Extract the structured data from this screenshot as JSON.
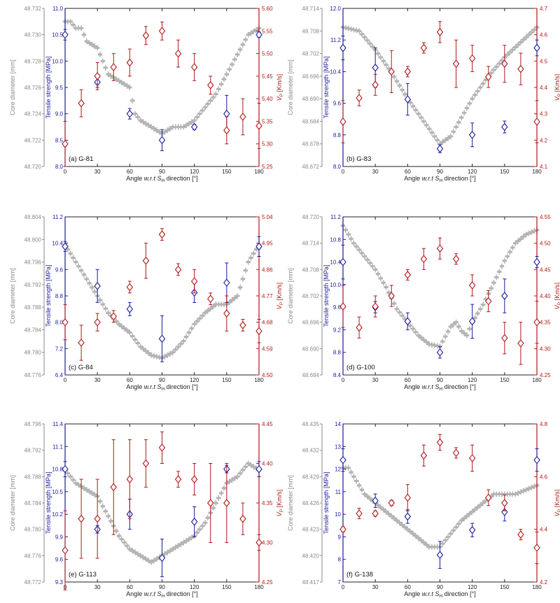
{
  "colors": {
    "core": "#b4b4b4",
    "core_axis": "#8a8a8a",
    "tensile": "#1a1a9a",
    "vp": "#b01818",
    "frame": "#222222"
  },
  "axis_titles": {
    "x_prefix": "Angle ",
    "x_italic": "w.r.t S",
    "x_sub": "H",
    "x_suffix": " direction [°]",
    "core": "Core diameter [mm]",
    "tensile": "Tensile strength [MPa]",
    "vp_main": "V",
    "vp_sub": "P",
    "vp_suffix": " [Km/s]"
  },
  "x_ticks": [
    0,
    30,
    60,
    90,
    120,
    150,
    180
  ],
  "chart_data": [
    {
      "type": "scatter",
      "label": "(a) G-81",
      "core_ticks": [
        "48.720",
        "48.722",
        "48.724",
        "48.726",
        "48.728",
        "48.730",
        "48.732"
      ],
      "core_ylim": [
        48.72,
        48.732
      ],
      "tensile_ticks": [
        "8.0",
        "8.5",
        "9.0",
        "9.5",
        "10.0",
        "10.5",
        "11.0"
      ],
      "tensile_ylim": [
        8.0,
        11.0
      ],
      "vp_ticks": [
        "5.25",
        "5.30",
        "5.35",
        "5.40",
        "5.45",
        "5.50",
        "5.55",
        "5.60"
      ],
      "vp_ylim": [
        5.25,
        5.6
      ],
      "core_profile": [
        [
          0,
          48.731
        ],
        [
          5,
          48.731
        ],
        [
          10,
          48.7305
        ],
        [
          15,
          48.7305
        ],
        [
          20,
          48.7295
        ],
        [
          30,
          48.729
        ],
        [
          40,
          48.727
        ],
        [
          50,
          48.7265
        ],
        [
          60,
          48.726
        ],
        [
          65,
          48.724
        ],
        [
          70,
          48.7235
        ],
        [
          80,
          48.723
        ],
        [
          90,
          48.7225
        ],
        [
          100,
          48.723
        ],
        [
          110,
          48.723
        ],
        [
          120,
          48.7235
        ],
        [
          130,
          48.7245
        ],
        [
          140,
          48.7255
        ],
        [
          150,
          48.727
        ],
        [
          160,
          48.7285
        ],
        [
          170,
          48.73
        ],
        [
          180,
          48.7305
        ]
      ],
      "tensile": [
        [
          0,
          10.5,
          0.1
        ],
        [
          30,
          9.6,
          0.1
        ],
        [
          60,
          9.0,
          0.1
        ],
        [
          90,
          8.5,
          0.2
        ],
        [
          120,
          8.75,
          0.05
        ],
        [
          150,
          9.0,
          0.35
        ],
        [
          180,
          10.5,
          0.05
        ]
      ],
      "vp": [
        [
          0,
          5.3,
          0.05
        ],
        [
          15,
          5.39,
          0.03
        ],
        [
          30,
          5.45,
          0.03
        ],
        [
          45,
          5.47,
          0.03
        ],
        [
          60,
          5.48,
          0.03
        ],
        [
          75,
          5.54,
          0.02
        ],
        [
          90,
          5.55,
          0.02
        ],
        [
          105,
          5.5,
          0.03
        ],
        [
          120,
          5.47,
          0.03
        ],
        [
          135,
          5.43,
          0.02
        ],
        [
          150,
          5.33,
          0.03
        ],
        [
          165,
          5.36,
          0.04
        ],
        [
          180,
          5.34,
          0.05
        ]
      ]
    },
    {
      "type": "scatter",
      "label": "(b) G-83",
      "core_ticks": [
        "48.672",
        "48.678",
        "48.684",
        "48.690",
        "48.696",
        "48.702",
        "48.708",
        "48.714"
      ],
      "core_ylim": [
        48.672,
        48.714
      ],
      "tensile_ticks": [
        "8.0",
        "8.8",
        "9.6",
        "10.4",
        "11.2",
        "12.0"
      ],
      "tensile_ylim": [
        8.0,
        12.0
      ],
      "vp_ticks": [
        "4.1",
        "4.2",
        "4.3",
        "4.4",
        "4.5",
        "4.6",
        "4.7"
      ],
      "vp_ylim": [
        4.1,
        4.7
      ],
      "core_profile": [
        [
          0,
          48.709
        ],
        [
          15,
          48.708
        ],
        [
          30,
          48.703
        ],
        [
          45,
          48.697
        ],
        [
          60,
          48.69
        ],
        [
          75,
          48.684
        ],
        [
          90,
          48.678
        ],
        [
          100,
          48.68
        ],
        [
          110,
          48.685
        ],
        [
          120,
          48.69
        ],
        [
          135,
          48.696
        ],
        [
          150,
          48.701
        ],
        [
          165,
          48.705
        ],
        [
          180,
          48.709
        ]
      ],
      "tensile": [
        [
          0,
          11.0,
          0.3
        ],
        [
          30,
          10.5,
          0.5
        ],
        [
          60,
          9.7,
          0.4
        ],
        [
          90,
          8.45,
          0.1
        ],
        [
          120,
          8.8,
          0.3
        ],
        [
          150,
          9.0,
          0.15
        ],
        [
          180,
          11.0,
          0.2
        ]
      ],
      "vp": [
        [
          0,
          4.27,
          0.08
        ],
        [
          15,
          4.36,
          0.03
        ],
        [
          30,
          4.41,
          0.04
        ],
        [
          45,
          4.46,
          0.08
        ],
        [
          60,
          4.46,
          0.02
        ],
        [
          75,
          4.55,
          0.02
        ],
        [
          90,
          4.61,
          0.04
        ],
        [
          105,
          4.49,
          0.09
        ],
        [
          120,
          4.51,
          0.05
        ],
        [
          135,
          4.44,
          0.04
        ],
        [
          150,
          4.49,
          0.07
        ],
        [
          165,
          4.47,
          0.06
        ],
        [
          180,
          4.27,
          0.08
        ]
      ]
    },
    {
      "type": "scatter",
      "label": "(c) G-84",
      "core_ticks": [
        "48.776",
        "48.780",
        "48.784",
        "48.788",
        "48.792",
        "48.796",
        "48.800",
        "48.804"
      ],
      "core_ylim": [
        48.776,
        48.804
      ],
      "tensile_ticks": [
        "6.4",
        "7.2",
        "8.0",
        "8.8",
        "9.6",
        "10.4",
        "11.2"
      ],
      "tensile_ylim": [
        6.4,
        11.2
      ],
      "vp_ticks": [
        "4.50",
        "4.59",
        "4.68",
        "4.77",
        "4.86",
        "4.95",
        "5.04"
      ],
      "vp_ylim": [
        4.5,
        5.04
      ],
      "core_profile": [
        [
          0,
          48.799
        ],
        [
          10,
          48.796
        ],
        [
          20,
          48.793
        ],
        [
          30,
          48.79
        ],
        [
          40,
          48.787
        ],
        [
          50,
          48.785
        ],
        [
          60,
          48.7835
        ],
        [
          70,
          48.781
        ],
        [
          80,
          48.7795
        ],
        [
          90,
          48.779
        ],
        [
          100,
          48.78
        ],
        [
          110,
          48.782
        ],
        [
          120,
          48.785
        ],
        [
          130,
          48.787
        ],
        [
          140,
          48.7885
        ],
        [
          150,
          48.7885
        ],
        [
          160,
          48.79
        ],
        [
          170,
          48.796
        ],
        [
          180,
          48.799
        ]
      ],
      "tensile": [
        [
          0,
          10.3,
          0.15
        ],
        [
          30,
          9.1,
          0.5
        ],
        [
          60,
          8.4,
          0.2
        ],
        [
          90,
          7.5,
          0.7
        ],
        [
          120,
          8.9,
          0.3
        ],
        [
          150,
          9.2,
          0.6
        ],
        [
          180,
          10.3,
          0.3
        ]
      ],
      "vp": [
        [
          0,
          4.68,
          0.06
        ],
        [
          15,
          4.61,
          0.06
        ],
        [
          30,
          4.68,
          0.03
        ],
        [
          45,
          4.7,
          0.02
        ],
        [
          60,
          4.8,
          0.02
        ],
        [
          75,
          4.89,
          0.06
        ],
        [
          90,
          4.98,
          0.02
        ],
        [
          105,
          4.86,
          0.02
        ],
        [
          120,
          4.82,
          0.04
        ],
        [
          135,
          4.76,
          0.02
        ],
        [
          150,
          4.71,
          0.06
        ],
        [
          165,
          4.67,
          0.02
        ],
        [
          180,
          4.65,
          0.04
        ]
      ]
    },
    {
      "type": "scatter",
      "label": "(d) G-100",
      "core_ticks": [
        "48.684",
        "48.690",
        "48.696",
        "48.702",
        "48.708",
        "48.714",
        "48.720"
      ],
      "core_ylim": [
        48.684,
        48.72
      ],
      "tensile_ticks": [
        "8.4",
        "8.8",
        "9.2",
        "9.6",
        "10.0",
        "10.4",
        "10.8",
        "11.2"
      ],
      "tensile_ylim": [
        8.4,
        11.2
      ],
      "vp_ticks": [
        "4.25",
        "4.30",
        "4.35",
        "4.40",
        "4.45",
        "4.50",
        "4.55"
      ],
      "vp_ylim": [
        4.25,
        4.55
      ],
      "core_profile": [
        [
          0,
          48.718
        ],
        [
          10,
          48.714
        ],
        [
          20,
          48.711
        ],
        [
          30,
          48.708
        ],
        [
          40,
          48.704
        ],
        [
          50,
          48.699
        ],
        [
          60,
          48.696
        ],
        [
          70,
          48.693
        ],
        [
          80,
          48.691
        ],
        [
          90,
          48.6905
        ],
        [
          100,
          48.695
        ],
        [
          105,
          48.696
        ],
        [
          110,
          48.694
        ],
        [
          115,
          48.693
        ],
        [
          120,
          48.696
        ],
        [
          130,
          48.7
        ],
        [
          140,
          48.705
        ],
        [
          150,
          48.71
        ],
        [
          160,
          48.714
        ],
        [
          170,
          48.716
        ],
        [
          180,
          48.717
        ]
      ],
      "tensile": [
        [
          0,
          10.4,
          0.3
        ],
        [
          30,
          9.6,
          0.1
        ],
        [
          60,
          9.35,
          0.15
        ],
        [
          90,
          8.8,
          0.1
        ],
        [
          120,
          9.35,
          0.3
        ],
        [
          150,
          9.8,
          0.3
        ],
        [
          180,
          10.4,
          0.1
        ]
      ],
      "vp": [
        [
          0,
          4.38,
          0.04
        ],
        [
          15,
          4.34,
          0.02
        ],
        [
          30,
          4.38,
          0.02
        ],
        [
          45,
          4.4,
          0.02
        ],
        [
          60,
          4.44,
          0.01
        ],
        [
          75,
          4.47,
          0.02
        ],
        [
          90,
          4.49,
          0.02
        ],
        [
          105,
          4.47,
          0.01
        ],
        [
          120,
          4.42,
          0.02
        ],
        [
          135,
          4.39,
          0.02
        ],
        [
          150,
          4.32,
          0.03
        ],
        [
          165,
          4.31,
          0.04
        ],
        [
          180,
          4.35,
          0.04
        ]
      ]
    },
    {
      "type": "scatter",
      "label": "(e) G-113",
      "core_ticks": [
        "48.772",
        "48.776",
        "48.780",
        "48.784",
        "48.788",
        "48.792",
        "48.796"
      ],
      "core_ylim": [
        48.772,
        48.796
      ],
      "tensile_ticks": [
        "9.3",
        "9.6",
        "9.9",
        "10.2",
        "10.5",
        "10.8",
        "11.1",
        "11.4"
      ],
      "tensile_ylim": [
        9.3,
        11.4
      ],
      "vp_ticks": [
        "4.25",
        "4.30",
        "4.35",
        "4.40",
        "4.45"
      ],
      "vp_ylim": [
        4.25,
        4.45
      ],
      "core_profile": [
        [
          0,
          48.789
        ],
        [
          10,
          48.787
        ],
        [
          20,
          48.786
        ],
        [
          30,
          48.785
        ],
        [
          40,
          48.782
        ],
        [
          50,
          48.779
        ],
        [
          60,
          48.777
        ],
        [
          70,
          48.776
        ],
        [
          80,
          48.775
        ],
        [
          90,
          48.776
        ],
        [
          100,
          48.777
        ],
        [
          110,
          48.778
        ],
        [
          120,
          48.779
        ],
        [
          130,
          48.781
        ],
        [
          140,
          48.784
        ],
        [
          150,
          48.787
        ],
        [
          160,
          48.788
        ],
        [
          170,
          48.79
        ],
        [
          180,
          48.789
        ]
      ],
      "tensile": [
        [
          0,
          10.8,
          0.1
        ],
        [
          30,
          10.0,
          0.05
        ],
        [
          60,
          10.2,
          0.2
        ],
        [
          90,
          9.62,
          0.25
        ],
        [
          120,
          10.1,
          0.2
        ],
        [
          150,
          10.8,
          0.05
        ],
        [
          180,
          10.8,
          0.1
        ]
      ],
      "vp": [
        [
          0,
          4.29,
          0.05
        ],
        [
          15,
          4.33,
          0.05
        ],
        [
          30,
          4.33,
          0.05
        ],
        [
          45,
          4.37,
          0.06
        ],
        [
          60,
          4.38,
          0.05
        ],
        [
          75,
          4.4,
          0.03
        ],
        [
          90,
          4.42,
          0.02
        ],
        [
          105,
          4.38,
          0.01
        ],
        [
          120,
          4.38,
          0.02
        ],
        [
          135,
          4.35,
          0.05
        ],
        [
          150,
          4.35,
          0.05
        ],
        [
          165,
          4.33,
          0.02
        ],
        [
          180,
          4.3,
          0.01
        ]
      ]
    },
    {
      "type": "scatter",
      "label": "(f) G-138",
      "core_ticks": [
        "48.417",
        "48.420",
        "48.423",
        "48.426",
        "48.429",
        "48.432",
        "48.435"
      ],
      "core_ylim": [
        48.417,
        48.435
      ],
      "tensile_ticks": [
        "7",
        "8",
        "9",
        "10",
        "11",
        "12",
        "13",
        "14"
      ],
      "tensile_ylim": [
        7.0,
        14.0
      ],
      "vp_ticks": [
        "4.2",
        "4.4",
        "4.6",
        "4.8"
      ],
      "vp_ylim": [
        4.2,
        4.8
      ],
      "core_profile": [
        [
          0,
          48.43
        ],
        [
          5,
          48.43
        ],
        [
          10,
          48.429
        ],
        [
          15,
          48.428
        ],
        [
          20,
          48.427
        ],
        [
          30,
          48.426
        ],
        [
          40,
          48.425
        ],
        [
          50,
          48.424
        ],
        [
          60,
          48.423
        ],
        [
          70,
          48.422
        ],
        [
          80,
          48.421
        ],
        [
          90,
          48.421
        ],
        [
          100,
          48.4225
        ],
        [
          110,
          48.424
        ],
        [
          120,
          48.425
        ],
        [
          130,
          48.426
        ],
        [
          140,
          48.427
        ],
        [
          150,
          48.427
        ],
        [
          160,
          48.427
        ],
        [
          170,
          48.4275
        ],
        [
          180,
          48.428
        ]
      ],
      "tensile": [
        [
          0,
          12.4,
          0.5
        ],
        [
          30,
          10.6,
          0.3
        ],
        [
          60,
          9.9,
          0.3
        ],
        [
          90,
          8.2,
          0.6
        ],
        [
          120,
          9.3,
          0.3
        ],
        [
          150,
          10.1,
          0.4
        ],
        [
          180,
          12.4,
          0.5
        ]
      ],
      "vp": [
        [
          0,
          4.4,
          0.01
        ],
        [
          15,
          4.46,
          0.02
        ],
        [
          30,
          4.46,
          0.01
        ],
        [
          45,
          4.5,
          0.01
        ],
        [
          60,
          4.52,
          0.05
        ],
        [
          75,
          4.68,
          0.04
        ],
        [
          90,
          4.73,
          0.03
        ],
        [
          105,
          4.69,
          0.02
        ],
        [
          120,
          4.67,
          0.05
        ],
        [
          135,
          4.52,
          0.03
        ],
        [
          150,
          4.5,
          0.03
        ],
        [
          165,
          4.38,
          0.02
        ],
        [
          180,
          4.33,
          0.06
        ]
      ]
    }
  ]
}
